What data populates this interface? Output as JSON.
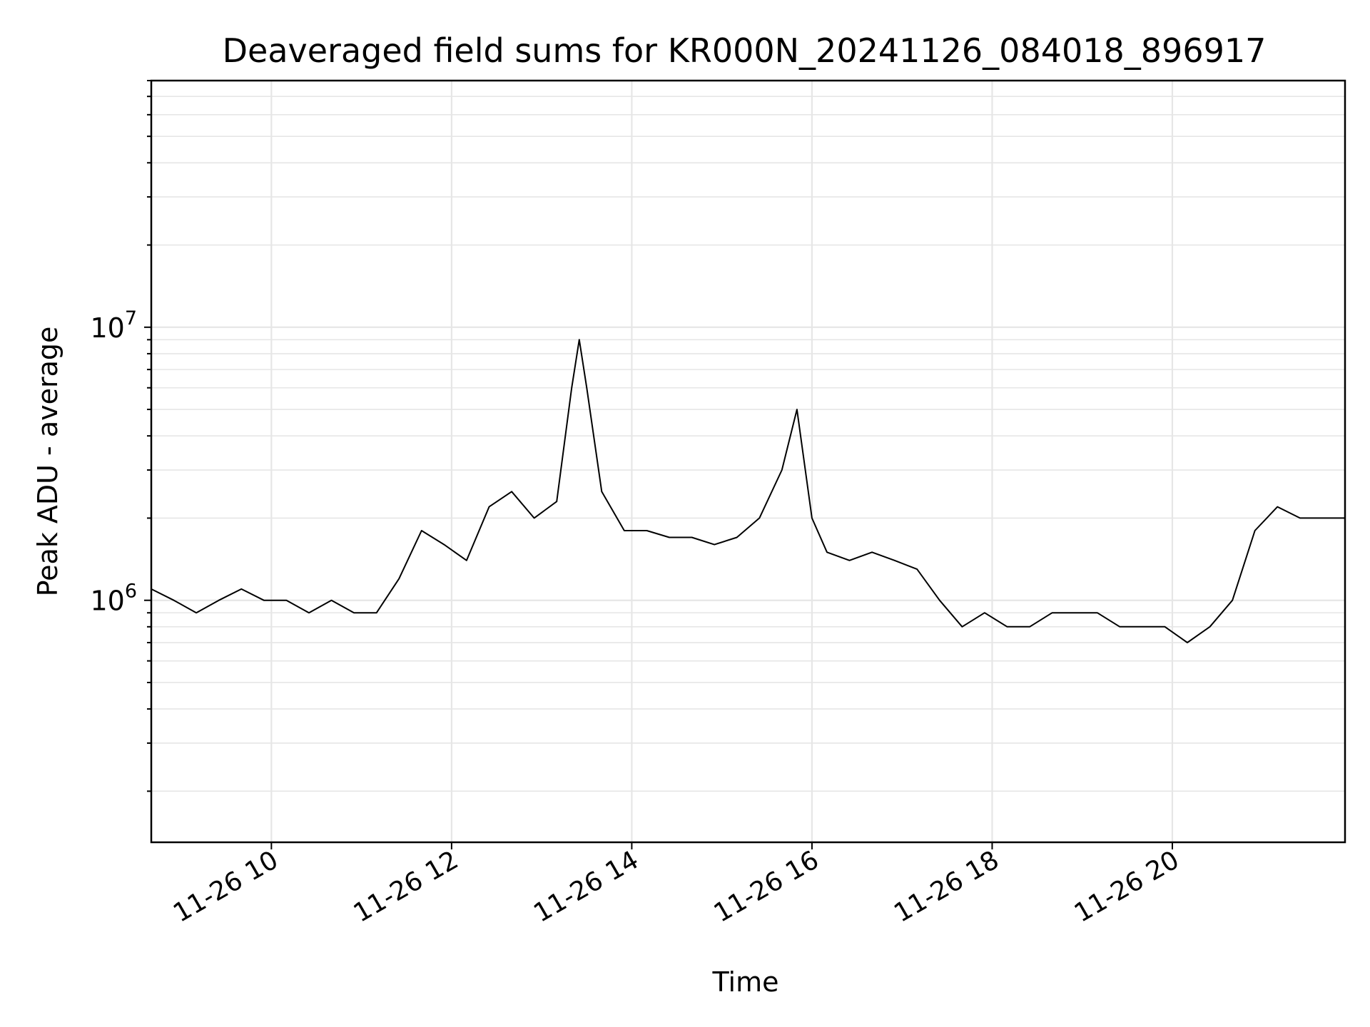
{
  "chart_data": {
    "type": "line",
    "title": "Deaveraged field sums for KR000N_20241126_084018_896917",
    "xlabel": "Time",
    "ylabel": "Peak ADU - average",
    "yscale": "log",
    "ylim": [
      130000,
      80000000
    ],
    "xlim": [
      "2024-11-26 08:40",
      "2024-11-26 21:55"
    ],
    "grid": true,
    "line_color": "#000000",
    "x_ticks": [
      {
        "label": "11-26 10",
        "value": "2024-11-26 10:00"
      },
      {
        "label": "11-26 12",
        "value": "2024-11-26 12:00"
      },
      {
        "label": "11-26 14",
        "value": "2024-11-26 14:00"
      },
      {
        "label": "11-26 16",
        "value": "2024-11-26 16:00"
      },
      {
        "label": "11-26 18",
        "value": "2024-11-26 18:00"
      },
      {
        "label": "11-26 20",
        "value": "2024-11-26 20:00"
      }
    ],
    "y_ticks": [
      {
        "base": "10",
        "exp": "6",
        "value": 1000000
      },
      {
        "base": "10",
        "exp": "7",
        "value": 10000000
      }
    ],
    "series": [
      {
        "x": [
          "08:40",
          "08:55",
          "09:10",
          "09:25",
          "09:40",
          "09:55",
          "10:10",
          "10:25",
          "10:40",
          "10:55",
          "11:10",
          "11:25",
          "11:40",
          "11:55",
          "12:10",
          "12:25",
          "12:40",
          "12:55",
          "13:10",
          "13:20",
          "13:25",
          "13:30",
          "13:40",
          "13:55",
          "14:10",
          "14:25",
          "14:40",
          "14:55",
          "15:10",
          "15:25",
          "15:40",
          "15:50",
          "16:00",
          "16:10",
          "16:25",
          "16:40",
          "16:55",
          "17:10",
          "17:25",
          "17:40",
          "17:55",
          "18:10",
          "18:25",
          "18:40",
          "18:55",
          "19:10",
          "19:25",
          "19:40",
          "19:55",
          "20:10",
          "20:25",
          "20:40",
          "20:55",
          "21:10",
          "21:25",
          "21:40",
          "21:55"
        ],
        "y": [
          1100000,
          1000000,
          900000,
          1000000,
          1100000,
          1000000,
          1000000,
          900000,
          1000000,
          900000,
          900000,
          1200000,
          1800000,
          1600000,
          1400000,
          2200000,
          2500000,
          2000000,
          2300000,
          6000000,
          9000000,
          6000000,
          2500000,
          1800000,
          1800000,
          1700000,
          1700000,
          1600000,
          1700000,
          2000000,
          3000000,
          5000000,
          2000000,
          1500000,
          1400000,
          1500000,
          1400000,
          1300000,
          1000000,
          800000,
          900000,
          800000,
          800000,
          900000,
          900000,
          900000,
          800000,
          800000,
          800000,
          700000,
          800000,
          1000000,
          1800000,
          2200000,
          2000000,
          2000000,
          2000000
        ]
      }
    ]
  }
}
